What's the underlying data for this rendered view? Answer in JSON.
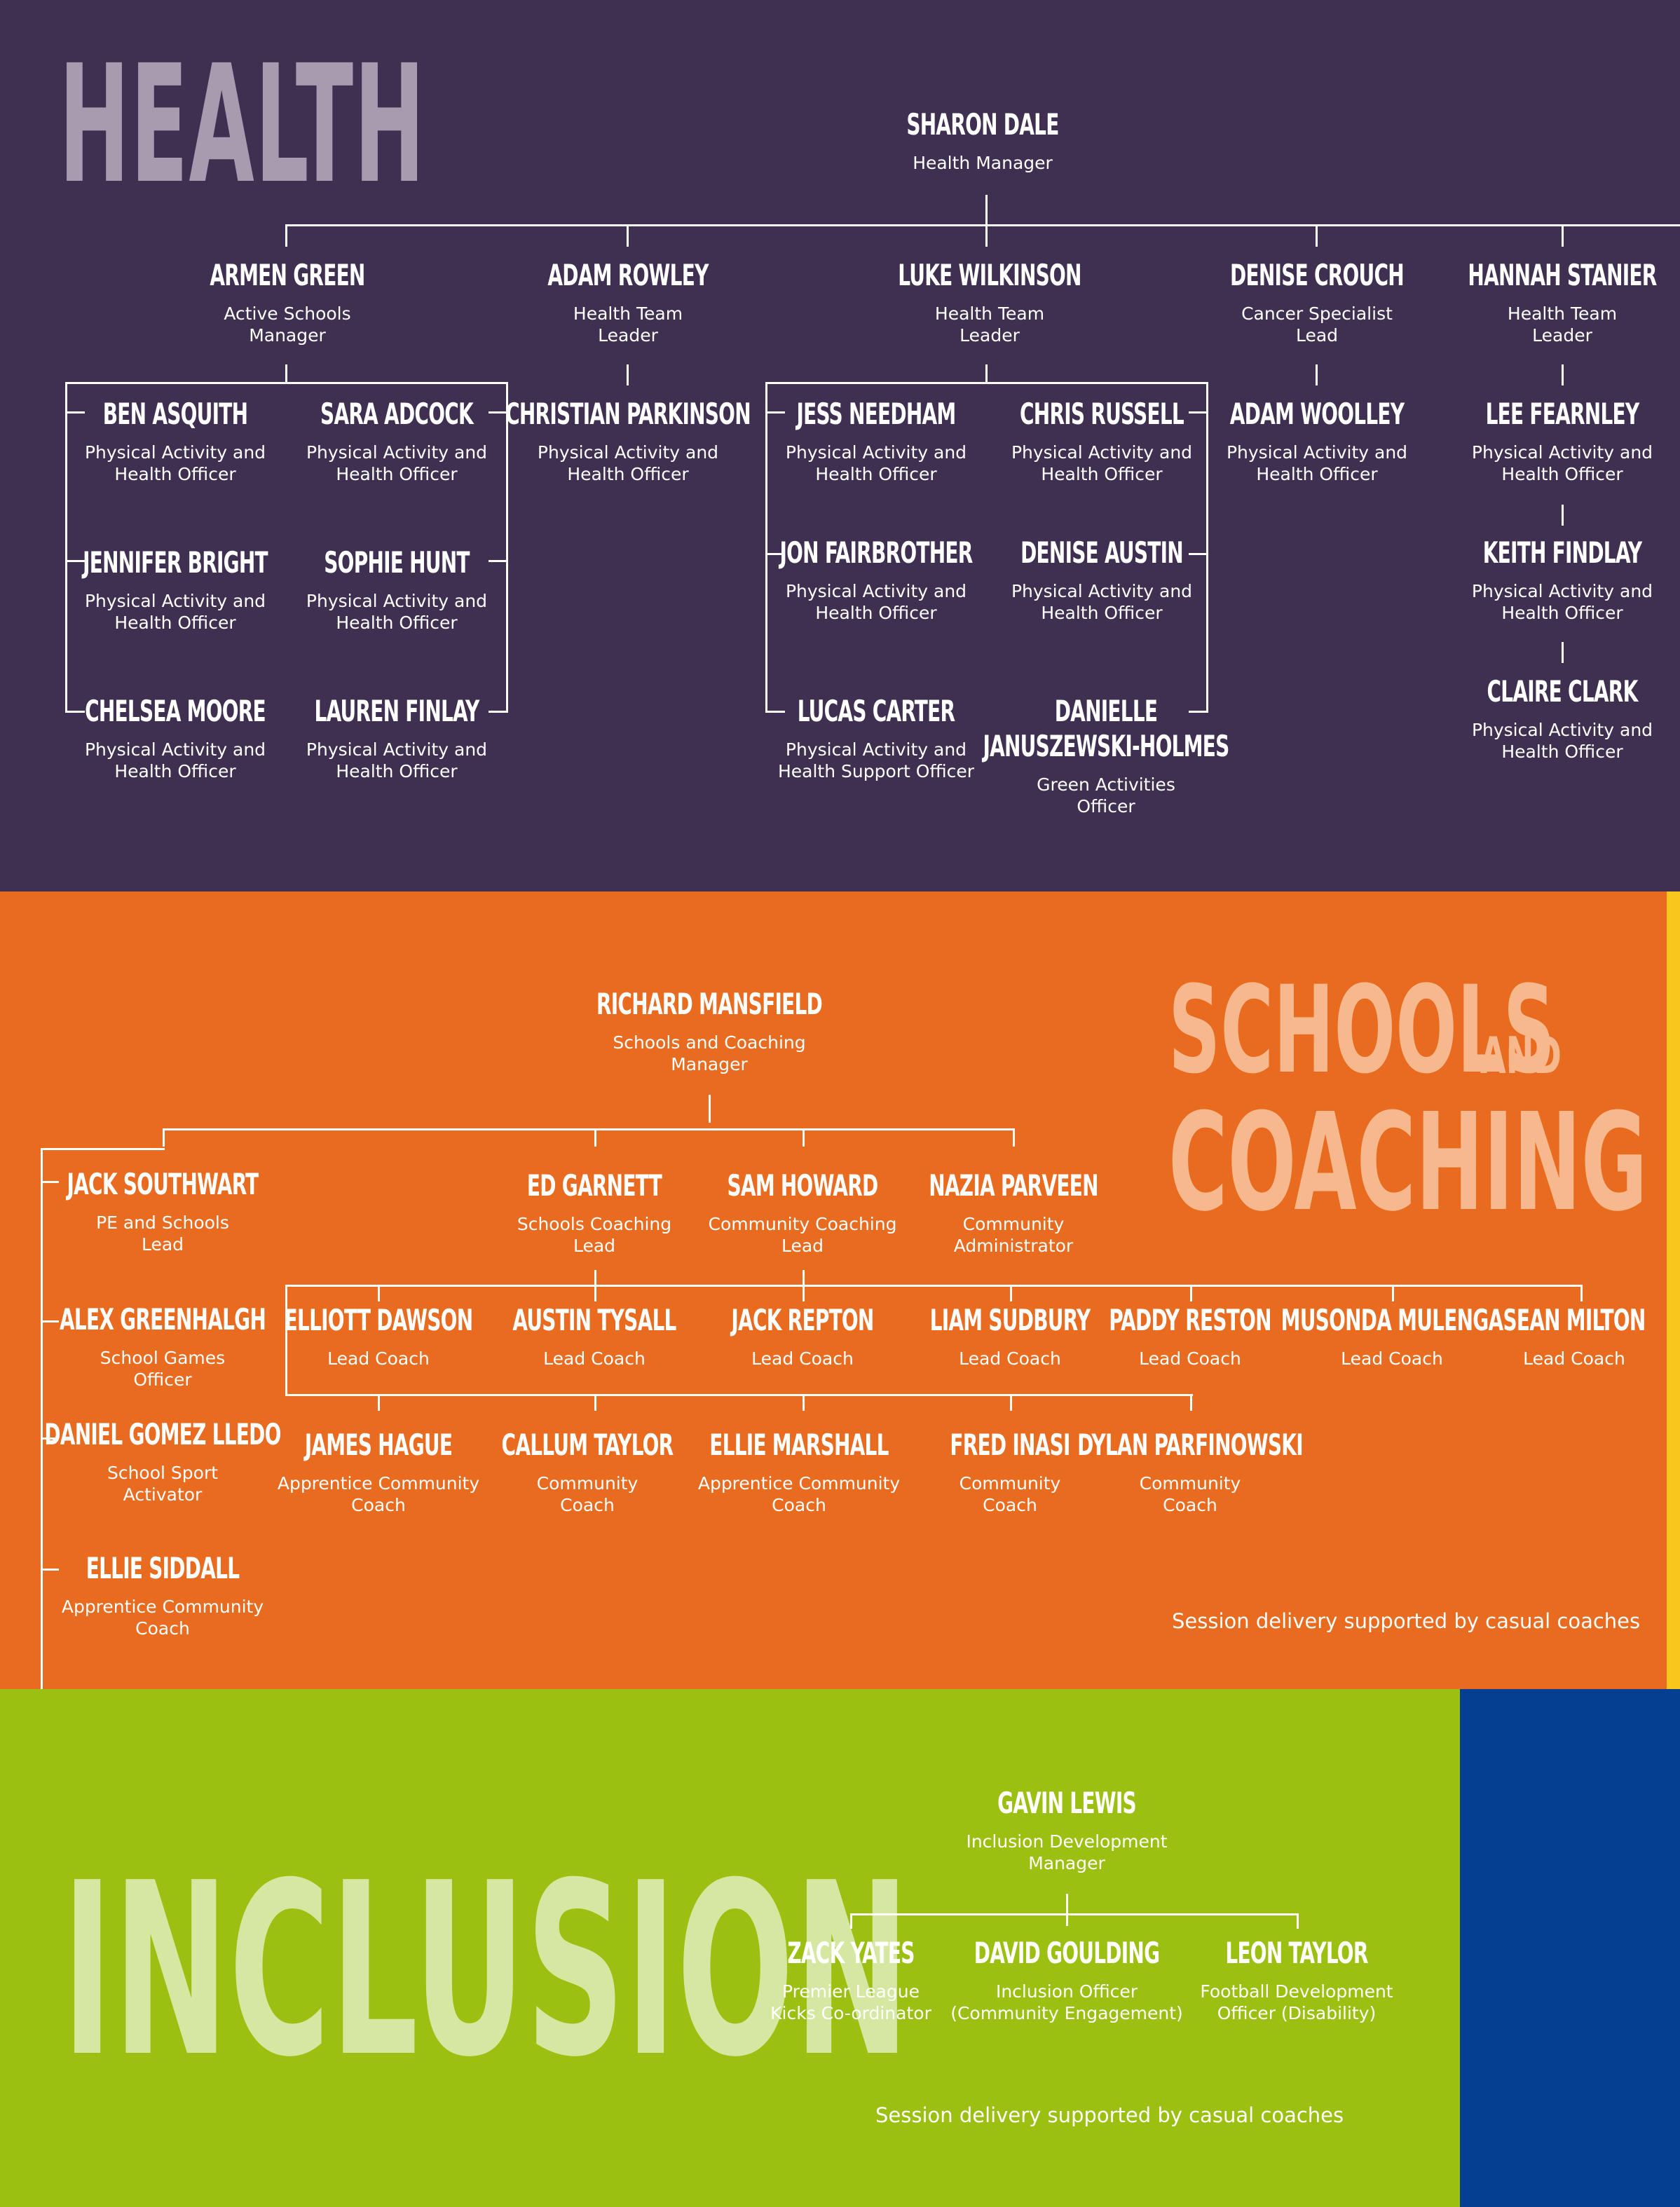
{
  "health": {
    "title": "HEALTH",
    "manager": {
      "name": "SHARON DALE",
      "role": "Health Manager"
    },
    "leads": [
      {
        "name": "ARMEN GREEN",
        "role": "Active Schools\nManager"
      },
      {
        "name": "ADAM ROWLEY",
        "role": "Health Team\nLeader"
      },
      {
        "name": "LUKE WILKINSON",
        "role": "Health Team\nLeader"
      },
      {
        "name": "DENISE CROUCH",
        "role": "Cancer Specialist\nLead"
      },
      {
        "name": "HANNAH STANIER",
        "role": "Health Team\nLeader"
      }
    ],
    "armen_team": [
      {
        "name": "BEN ASQUITH",
        "role": "Physical Activity and\nHealth Officer"
      },
      {
        "name": "SARA ADCOCK",
        "role": "Physical Activity and\nHealth Officer"
      },
      {
        "name": "JENNIFER BRIGHT",
        "role": "Physical Activity and\nHealth Officer"
      },
      {
        "name": "SOPHIE HUNT",
        "role": "Physical Activity and\nHealth Officer"
      },
      {
        "name": "CHELSEA MOORE",
        "role": "Physical Activity and\nHealth Officer"
      },
      {
        "name": "LAUREN FINLAY",
        "role": "Physical Activity and\nHealth Officer"
      }
    ],
    "adam_team": [
      {
        "name": "CHRISTIAN PARKINSON",
        "role": "Physical Activity and\nHealth Officer"
      }
    ],
    "luke_team": [
      {
        "name": "JESS NEEDHAM",
        "role": "Physical Activity and\nHealth Officer"
      },
      {
        "name": "CHRIS RUSSELL",
        "role": "Physical Activity and\nHealth Officer"
      },
      {
        "name": "JON FAIRBROTHER",
        "role": "Physical Activity and\nHealth Officer"
      },
      {
        "name": "DENISE AUSTIN",
        "role": "Physical Activity and\nHealth Officer"
      },
      {
        "name": "LUCAS CARTER",
        "role": "Physical Activity and\nHealth Support Officer"
      },
      {
        "name": "DANIELLE\nJANUSZEWSKI-HOLMES",
        "role": "Green Activities\nOfficer"
      }
    ],
    "denise_team": [
      {
        "name": "ADAM WOOLLEY",
        "role": "Physical Activity and\nHealth Officer"
      }
    ],
    "hannah_team": [
      {
        "name": "LEE FEARNLEY",
        "role": "Physical Activity and\nHealth Officer"
      },
      {
        "name": "KEITH FINDLAY",
        "role": "Physical Activity and\nHealth Officer"
      },
      {
        "name": "CLAIRE CLARK",
        "role": "Physical Activity and\nHealth Officer"
      }
    ]
  },
  "schools": {
    "title_line1": "SCHOOLS",
    "title_and": "AND",
    "title_line2": "COACHING",
    "manager": {
      "name": "RICHARD MANSFIELD",
      "role": "Schools and Coaching\nManager"
    },
    "left_column": [
      {
        "name": "JACK SOUTHWART",
        "role": "PE and Schools\nLead"
      },
      {
        "name": "ALEX GREENHALGH",
        "role": "School Games\nOfficer"
      },
      {
        "name": "DANIEL GOMEZ LLEDO",
        "role": "School Sport\nActivator"
      },
      {
        "name": "ELLIE SIDDALL",
        "role": "Apprentice Community\nCoach"
      }
    ],
    "leads": [
      {
        "name": "ED GARNETT",
        "role": "Schools Coaching\nLead"
      },
      {
        "name": "SAM HOWARD",
        "role": "Community Coaching\nLead"
      },
      {
        "name": "NAZIA PARVEEN",
        "role": "Community\nAdministrator"
      }
    ],
    "lead_coaches": [
      {
        "name": "ELLIOTT DAWSON",
        "role": "Lead Coach"
      },
      {
        "name": "AUSTIN TYSALL",
        "role": "Lead Coach"
      },
      {
        "name": "JACK REPTON",
        "role": "Lead Coach"
      },
      {
        "name": "LIAM SUDBURY",
        "role": "Lead Coach"
      },
      {
        "name": "PADDY RESTON",
        "role": "Lead Coach"
      },
      {
        "name": "MUSONDA MULENGA",
        "role": "Lead Coach"
      },
      {
        "name": "SEAN MILTON",
        "role": "Lead Coach"
      }
    ],
    "coaches": [
      {
        "name": "JAMES HAGUE",
        "role": "Apprentice Community\nCoach"
      },
      {
        "name": "CALLUM TAYLOR",
        "role": "Community\nCoach"
      },
      {
        "name": "ELLIE MARSHALL",
        "role": "Apprentice Community\nCoach"
      },
      {
        "name": "FRED INASI",
        "role": "Community\nCoach"
      },
      {
        "name": "DYLAN PARFINOWSKI",
        "role": "Community\nCoach"
      }
    ],
    "note": "Session delivery supported by casual coaches"
  },
  "inclusion": {
    "title": "INCLUSION",
    "manager": {
      "name": "GAVIN LEWIS",
      "role": "Inclusion Development\nManager"
    },
    "team": [
      {
        "name": "ZACK YATES",
        "role": "Premier League\nKicks Co-ordinator"
      },
      {
        "name": "DAVID GOULDING",
        "role": "Inclusion Officer\n(Community Engagement)"
      },
      {
        "name": "LEON TAYLOR",
        "role": "Football Development\nOfficer (Disability)"
      }
    ],
    "note": "Session delivery supported by casual coaches"
  },
  "colors": {
    "health_bg": "#3f3052",
    "schools_bg": "#e96b20",
    "inclusion_bg": "#9bc012",
    "accent_yellow": "#f8c61c",
    "accent_blue": "#043f91",
    "health_title": "#a79bb0",
    "schools_title": "#f6b88c",
    "inclusion_title": "#d5e7a1"
  }
}
